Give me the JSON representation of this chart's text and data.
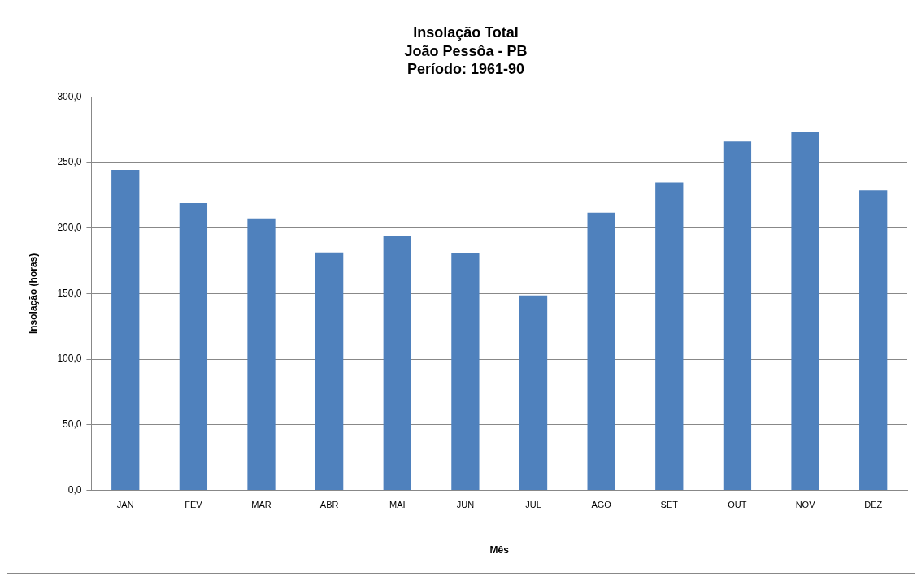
{
  "chart_data": {
    "type": "bar",
    "title": "Insolação Total\nJoão Pessôa - PB\nPeríodo: 1961-90",
    "xlabel": "Mês",
    "ylabel": "Insolação (horas)",
    "categories": [
      "JAN",
      "FEV",
      "MAR",
      "ABR",
      "MAI",
      "JUN",
      "JUL",
      "AGO",
      "SET",
      "OUT",
      "NOV",
      "DEZ"
    ],
    "values": [
      244.5,
      219.1,
      207.5,
      181.4,
      194.2,
      180.8,
      148.5,
      211.8,
      234.9,
      266.0,
      273.3,
      228.8
    ],
    "color": "#4f81bd",
    "ylim": [
      0,
      300
    ],
    "yticks": [
      {
        "value": 0,
        "label": "0,0"
      },
      {
        "value": 50,
        "label": "50,0"
      },
      {
        "value": 100,
        "label": "100,0"
      },
      {
        "value": 150,
        "label": "150,0"
      },
      {
        "value": 200,
        "label": "200,0"
      },
      {
        "value": 250,
        "label": "250,0"
      },
      {
        "value": 300,
        "label": "300,0"
      }
    ],
    "grid": "y",
    "legend": false
  }
}
